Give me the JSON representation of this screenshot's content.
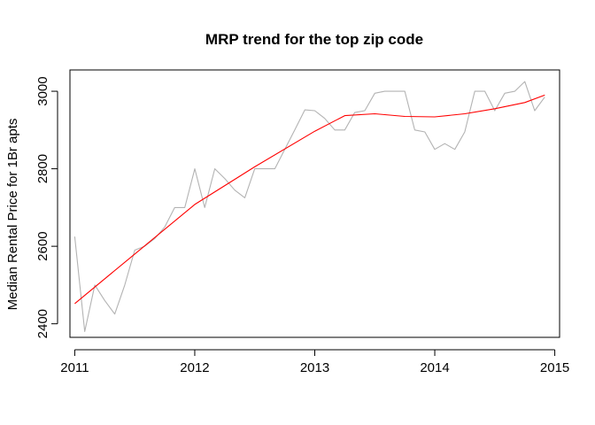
{
  "chart_data": {
    "type": "line",
    "title": "MRP trend for the top zip code",
    "xlabel": "",
    "ylabel": "Median Rental Price for 1Br apts",
    "xlim": [
      2010.96,
      2015.04
    ],
    "ylim": [
      2365,
      3055
    ],
    "x_ticks": [
      2011,
      2012,
      2013,
      2014,
      2015
    ],
    "x_tick_labels": [
      "2011",
      "2012",
      "2013",
      "2014",
      "2015"
    ],
    "y_ticks": [
      2400,
      2600,
      2800,
      3000
    ],
    "y_tick_labels": [
      "2400",
      "2600",
      "2800",
      "3000"
    ],
    "grid": false,
    "legend": "none",
    "series": [
      {
        "style": "raw",
        "color": "#b3b3b3",
        "x": [
          2011.0,
          2011.083,
          2011.167,
          2011.25,
          2011.333,
          2011.417,
          2011.5,
          2011.583,
          2011.667,
          2011.75,
          2011.833,
          2011.917,
          2012.0,
          2012.083,
          2012.167,
          2012.25,
          2012.333,
          2012.417,
          2012.5,
          2012.583,
          2012.667,
          2012.75,
          2012.833,
          2012.917,
          2013.0,
          2013.083,
          2013.167,
          2013.25,
          2013.333,
          2013.417,
          2013.5,
          2013.583,
          2013.667,
          2013.75,
          2013.833,
          2013.917,
          2014.0,
          2014.083,
          2014.167,
          2014.25,
          2014.333,
          2014.417,
          2014.5,
          2014.583,
          2014.667,
          2014.75,
          2014.833,
          2014.917
        ],
        "y": [
          2625,
          2380,
          2500,
          2460,
          2425,
          2500,
          2590,
          2600,
          2620,
          2650,
          2700,
          2700,
          2800,
          2700,
          2800,
          2775,
          2745,
          2725,
          2800,
          2800,
          2800,
          2850,
          2900,
          2952,
          2950,
          2930,
          2900,
          2900,
          2945,
          2950,
          2995,
          3000,
          3000,
          3000,
          2900,
          2895,
          2850,
          2865,
          2850,
          2895,
          3000,
          3000,
          2950,
          2995,
          3000,
          3025,
          2950,
          2985
        ]
      },
      {
        "style": "trend",
        "color": "#ff0000",
        "x": [
          2011.0,
          2011.5,
          2012.0,
          2012.5,
          2013.0,
          2013.25,
          2013.5,
          2013.75,
          2014.0,
          2014.25,
          2014.5,
          2014.75,
          2014.917
        ],
        "y": [
          2452,
          2580,
          2708,
          2805,
          2897,
          2937,
          2942,
          2935,
          2934,
          2942,
          2955,
          2971,
          2990
        ]
      }
    ]
  }
}
